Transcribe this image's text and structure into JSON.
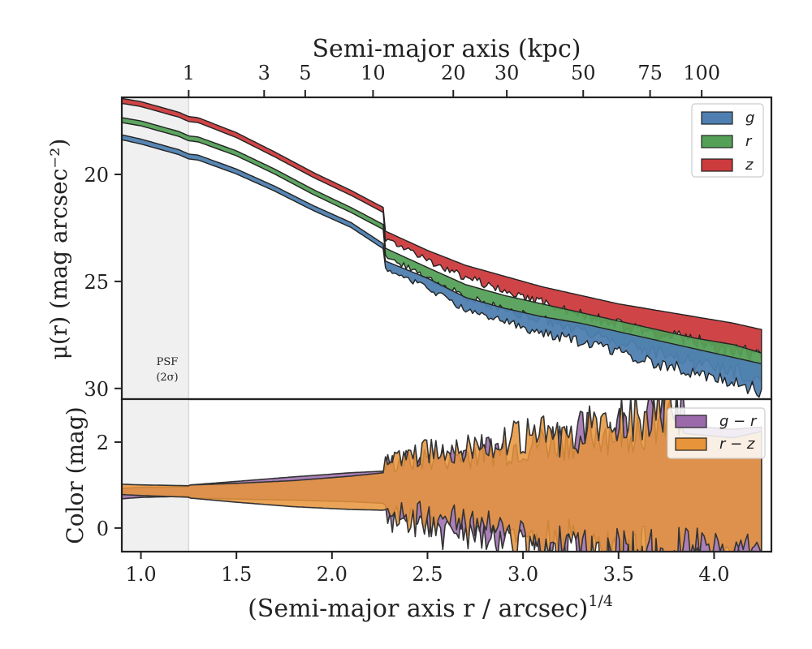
{
  "chart_data": [
    {
      "type": "area",
      "panel": "top",
      "ylabel": "μ(r) (mag arcsec⁻²)",
      "ylim": [
        30.5,
        16.4
      ],
      "y_inverted": true,
      "yticks": [
        "20",
        "25",
        "30"
      ],
      "ytick_values": [
        20,
        25,
        30
      ],
      "top_axis": {
        "label": "Semi-major axis (kpc)",
        "ticks": [
          "1",
          "3",
          "5",
          "10",
          "20",
          "30",
          "50",
          "75",
          "100"
        ],
        "tick_positions_x": [
          1.25,
          1.645,
          1.86,
          2.215,
          2.635,
          2.915,
          3.315,
          3.665,
          3.935
        ]
      },
      "psf_band": {
        "x_range": [
          0.9,
          1.25
        ],
        "label_line1": "PSF",
        "label_line2": "(2σ)"
      },
      "legend": {
        "position": "top-right",
        "entries": [
          "g",
          "r",
          "z"
        ]
      },
      "colors": {
        "g": "#4e7fb0",
        "r": "#54a057",
        "z": "#cc3b3d"
      },
      "x": [
        0.9,
        1.0,
        1.1,
        1.2,
        1.25,
        1.3,
        1.5,
        1.7,
        1.9,
        2.1,
        2.27,
        2.28,
        2.5,
        2.7,
        2.9,
        3.1,
        3.3,
        3.5,
        3.7,
        3.9,
        4.1,
        4.25
      ],
      "series": [
        {
          "name": "g",
          "values": [
            18.2,
            18.4,
            18.65,
            18.9,
            19.1,
            19.15,
            19.8,
            20.6,
            21.5,
            22.3,
            23.3,
            24.1,
            24.9,
            25.8,
            26.3,
            26.7,
            27.0,
            27.4,
            27.8,
            28.2,
            28.6,
            28.9
          ]
        },
        {
          "name": "r",
          "values": [
            17.4,
            17.55,
            17.8,
            18.05,
            18.25,
            18.3,
            18.95,
            19.8,
            20.75,
            21.6,
            22.4,
            23.5,
            24.4,
            25.2,
            25.7,
            26.1,
            26.5,
            26.9,
            27.3,
            27.7,
            28.0,
            28.4
          ]
        },
        {
          "name": "z",
          "values": [
            16.5,
            16.65,
            16.9,
            17.15,
            17.35,
            17.4,
            18.1,
            19.0,
            19.95,
            20.8,
            21.6,
            22.7,
            23.6,
            24.3,
            24.8,
            25.3,
            25.7,
            26.1,
            26.4,
            26.7,
            27.0,
            27.3
          ]
        }
      ]
    },
    {
      "type": "area",
      "panel": "bottom",
      "xlabel": "(Semi-major axis r / arcsec)",
      "xlabel_superscript": "1/4",
      "ylabel": "Color (mag)",
      "xlim": [
        0.9,
        4.3
      ],
      "ylim": [
        -0.55,
        3.0
      ],
      "xticks": [
        "1.0",
        "1.5",
        "2.0",
        "2.5",
        "3.0",
        "3.5",
        "4.0"
      ],
      "xtick_values": [
        1.0,
        1.5,
        2.0,
        2.5,
        3.0,
        3.5,
        4.0
      ],
      "yticks": [
        "0",
        "2"
      ],
      "ytick_values": [
        0,
        2
      ],
      "legend": {
        "position": "top-right",
        "entries": [
          "g − r",
          "r − z"
        ]
      },
      "colors": {
        "g_minus_r": "#9b6aab",
        "r_minus_z": "#e8943a"
      },
      "x": [
        0.9,
        1.0,
        1.25,
        1.5,
        1.8,
        2.1,
        2.27,
        2.28,
        2.5,
        2.8,
        3.1,
        3.4,
        3.7,
        3.85,
        4.1,
        4.25
      ],
      "series": [
        {
          "name": "g − r",
          "values": [
            0.8,
            0.83,
            0.85,
            0.88,
            0.92,
            0.95,
            0.95,
            0.9,
            0.85,
            0.8,
            0.78,
            0.8,
            0.8,
            0.78,
            0.7,
            0.75
          ]
        },
        {
          "name": "r − z",
          "values": [
            0.9,
            0.88,
            0.85,
            0.82,
            0.8,
            0.82,
            0.85,
            0.95,
            1.0,
            0.95,
            0.9,
            0.85,
            1.0,
            0.95,
            0.85,
            1.0
          ]
        }
      ]
    }
  ]
}
